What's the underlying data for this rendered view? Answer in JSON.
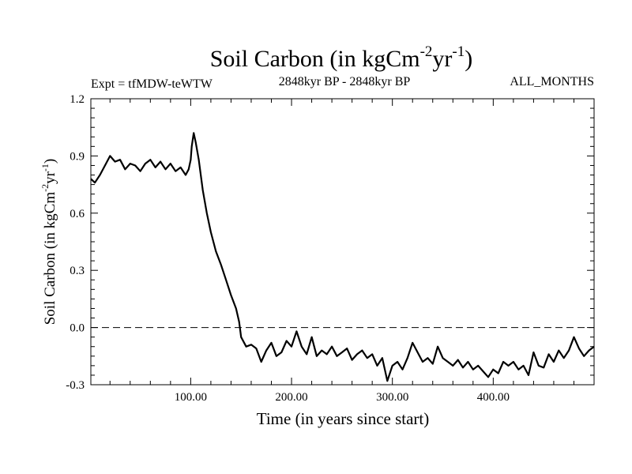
{
  "chart_data": {
    "type": "line",
    "title": {
      "text": "Soil Carbon (in kgCm",
      "sup1": "-2",
      "mid": "yr",
      "sup2": "-1",
      "close": ")"
    },
    "subtitle_left": "Expt = tfMDW-teWTW",
    "subtitle_center": "2848kyr BP - 2848kyr BP",
    "subtitle_right": "ALL_MONTHS",
    "xlabel": "Time (in years since start)",
    "ylabel": {
      "text": "Soil Carbon (in kgCm",
      "sup1": "-2",
      "mid": "yr",
      "sup2": "-1",
      "close": ")"
    },
    "xlim": [
      1,
      500
    ],
    "ylim": [
      -0.3,
      1.2
    ],
    "xticks": [
      100,
      200,
      300,
      400
    ],
    "xtick_labels": [
      "100.00",
      "200.00",
      "300.00",
      "400.00"
    ],
    "yticks": [
      -0.3,
      0.0,
      0.3,
      0.6,
      0.9,
      1.2
    ],
    "ytick_labels": [
      "-0.3",
      "0.0",
      "0.3",
      "0.6",
      "0.9",
      "1.2"
    ],
    "reference_line": {
      "y": 0.0,
      "style": "dashed"
    },
    "line_color": "#000000",
    "series": [
      {
        "name": "Soil Carbon",
        "x": [
          1,
          5,
          10,
          15,
          20,
          25,
          30,
          35,
          40,
          45,
          50,
          55,
          60,
          65,
          70,
          75,
          80,
          85,
          90,
          95,
          98,
          100,
          101,
          103,
          105,
          108,
          112,
          116,
          120,
          125,
          130,
          135,
          140,
          145,
          148,
          150,
          155,
          160,
          165,
          170,
          175,
          180,
          185,
          190,
          195,
          200,
          205,
          210,
          215,
          220,
          225,
          230,
          235,
          240,
          245,
          250,
          255,
          260,
          265,
          270,
          275,
          280,
          285,
          290,
          295,
          300,
          305,
          310,
          315,
          320,
          325,
          330,
          335,
          340,
          345,
          350,
          355,
          360,
          365,
          370,
          375,
          380,
          385,
          390,
          395,
          400,
          405,
          410,
          415,
          420,
          425,
          430,
          435,
          440,
          445,
          450,
          455,
          460,
          465,
          470,
          475,
          480,
          485,
          490,
          495,
          500
        ],
        "y": [
          0.78,
          0.76,
          0.8,
          0.85,
          0.9,
          0.87,
          0.88,
          0.83,
          0.86,
          0.85,
          0.82,
          0.86,
          0.88,
          0.84,
          0.87,
          0.83,
          0.86,
          0.82,
          0.84,
          0.8,
          0.83,
          0.88,
          0.95,
          1.02,
          0.97,
          0.88,
          0.72,
          0.6,
          0.5,
          0.4,
          0.33,
          0.25,
          0.17,
          0.1,
          0.03,
          -0.05,
          -0.1,
          -0.09,
          -0.11,
          -0.18,
          -0.12,
          -0.08,
          -0.15,
          -0.13,
          -0.07,
          -0.1,
          -0.02,
          -0.1,
          -0.14,
          -0.05,
          -0.15,
          -0.12,
          -0.14,
          -0.1,
          -0.15,
          -0.13,
          -0.11,
          -0.17,
          -0.14,
          -0.12,
          -0.16,
          -0.14,
          -0.2,
          -0.16,
          -0.28,
          -0.2,
          -0.18,
          -0.22,
          -0.16,
          -0.08,
          -0.13,
          -0.18,
          -0.16,
          -0.19,
          -0.1,
          -0.16,
          -0.18,
          -0.2,
          -0.17,
          -0.21,
          -0.18,
          -0.22,
          -0.2,
          -0.23,
          -0.26,
          -0.22,
          -0.24,
          -0.18,
          -0.2,
          -0.18,
          -0.22,
          -0.2,
          -0.25,
          -0.13,
          -0.2,
          -0.21,
          -0.14,
          -0.18,
          -0.12,
          -0.16,
          -0.12,
          -0.05,
          -0.11,
          -0.15,
          -0.12,
          -0.1
        ]
      }
    ]
  }
}
